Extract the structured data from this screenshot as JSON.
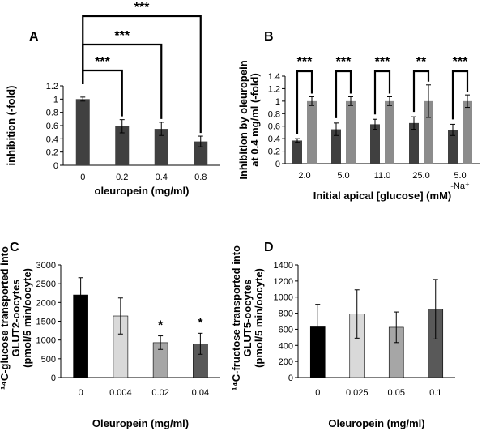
{
  "colors": {
    "dark": "#404040",
    "light": "#8c8c8c",
    "black": "#000000"
  },
  "chart_data": [
    {
      "panel": "A",
      "type": "bar",
      "categories": [
        "0",
        "0.2",
        "0.4",
        "0.8"
      ],
      "values": [
        1.0,
        0.59,
        0.55,
        0.36
      ],
      "errors": [
        0.03,
        0.1,
        0.1,
        0.08
      ],
      "ylabel": "inhibition (-fold)",
      "xlabel": "oleuropein (mg/ml)",
      "ylim": [
        0,
        1.2
      ],
      "yticks": [
        "0",
        "0.2",
        "0.4",
        "0.6",
        "0.8",
        "1",
        "1.2"
      ],
      "bar_colors": [
        "#404040",
        "#404040",
        "#404040",
        "#404040"
      ],
      "brackets": [
        {
          "from": 0,
          "to": 1,
          "label": "***"
        },
        {
          "from": 0,
          "to": 2,
          "label": "***"
        },
        {
          "from": 0,
          "to": 3,
          "label": "***"
        }
      ]
    },
    {
      "panel": "B",
      "type": "bar",
      "categories": [
        "2.0",
        "5.0",
        "11.0",
        "25.0",
        "5.0"
      ],
      "category_sublabels": [
        "",
        "",
        "",
        "",
        "-Na⁺"
      ],
      "series": [
        {
          "values": [
            0.37,
            0.55,
            0.63,
            0.65,
            0.54
          ],
          "errors": [
            0.03,
            0.1,
            0.08,
            0.1,
            0.09
          ],
          "color": "#404040"
        },
        {
          "values": [
            1.0,
            1.0,
            1.0,
            1.0,
            1.0
          ],
          "errors": [
            0.07,
            0.07,
            0.07,
            0.26,
            0.1
          ],
          "color": "#8c8c8c"
        }
      ],
      "ylabel_lines": [
        "Inhibition by oleuropein",
        "at 0.4 mg/ml (-fold)"
      ],
      "xlabel": "Initial apical [glucose] (mM)",
      "ylim": [
        0,
        1.4
      ],
      "yticks": [
        "0",
        "0.2",
        "0.4",
        "0.6",
        "0.8",
        "1",
        "1.2",
        "1.4"
      ],
      "brackets": [
        "***",
        "***",
        "***",
        "**",
        "***"
      ]
    },
    {
      "panel": "C",
      "type": "bar",
      "categories": [
        "0",
        "0.004",
        "0.02",
        "0.04"
      ],
      "values": [
        2200,
        1640,
        930,
        900
      ],
      "errors": [
        460,
        480,
        180,
        280
      ],
      "ylabel_lines": [
        "¹⁴C-glucose transported into",
        "GLUT2-oocytes",
        "(pmol/5 min/oocyte)"
      ],
      "xlabel": "Oleuropein (mg/ml)",
      "ylim": [
        0,
        3000
      ],
      "yticks": [
        "0",
        "500",
        "1000",
        "1500",
        "2000",
        "2500",
        "3000"
      ],
      "bar_colors": [
        "#000000",
        "#d9d9d9",
        "#a6a6a6",
        "#595959"
      ],
      "annotations": [
        "",
        "",
        "*",
        "*"
      ]
    },
    {
      "panel": "D",
      "type": "bar",
      "categories": [
        "0",
        "0.025",
        "0.05",
        "0.1"
      ],
      "values": [
        630,
        790,
        625,
        850
      ],
      "errors": [
        280,
        300,
        190,
        370
      ],
      "ylabel_lines": [
        "¹⁴C-fructose transported into",
        "GLUT5-oocytes",
        "(pmol/5 min/oocyte)"
      ],
      "xlabel": "Oleuropein (mg/ml)",
      "ylim": [
        0,
        1400
      ],
      "yticks": [
        "0",
        "200",
        "400",
        "600",
        "800",
        "1000",
        "1200",
        "1400"
      ],
      "bar_colors": [
        "#000000",
        "#d9d9d9",
        "#a6a6a6",
        "#595959"
      ]
    }
  ]
}
